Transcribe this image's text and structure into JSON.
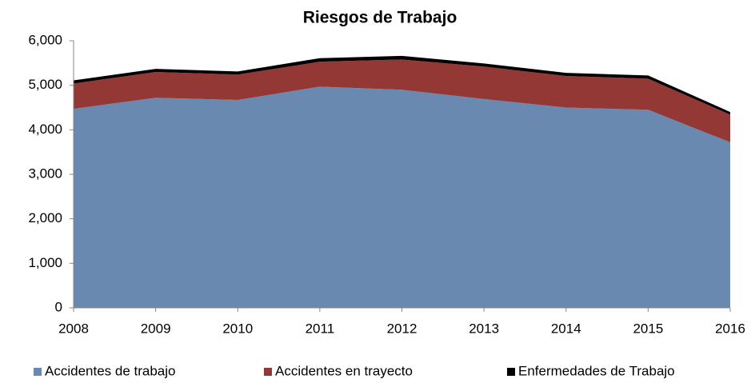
{
  "chart_data": {
    "type": "stacked_area",
    "title": "Riesgos de Trabajo",
    "categories": [
      "2008",
      "2009",
      "2010",
      "2011",
      "2012",
      "2013",
      "2014",
      "2015",
      "2016"
    ],
    "series": [
      {
        "name": "Accidentes de trabajo",
        "color": "#6a89b0",
        "values": [
          4470,
          4720,
          4670,
          4970,
          4900,
          4690,
          4500,
          4450,
          3720
        ]
      },
      {
        "name": "Accidentes en trayecto",
        "color": "#943835",
        "values": [
          570,
          580,
          570,
          560,
          680,
          730,
          710,
          700,
          620
        ]
      },
      {
        "name": "Enfermedades de Trabajo",
        "color": "#000000",
        "values": [
          70,
          70,
          70,
          80,
          80,
          70,
          70,
          70,
          60
        ]
      }
    ],
    "ylim": [
      0,
      6000
    ],
    "yticks": [
      0,
      {
        "value": 1000,
        "label": "1,000"
      },
      {
        "value": 2000,
        "label": "2,000"
      },
      {
        "value": 3000,
        "label": "3,000"
      },
      {
        "value": 4000,
        "label": "4,000"
      },
      {
        "value": 5000,
        "label": "5,000"
      },
      {
        "value": 6000,
        "label": "6,000"
      }
    ],
    "grid": false,
    "legend": "bottom"
  }
}
